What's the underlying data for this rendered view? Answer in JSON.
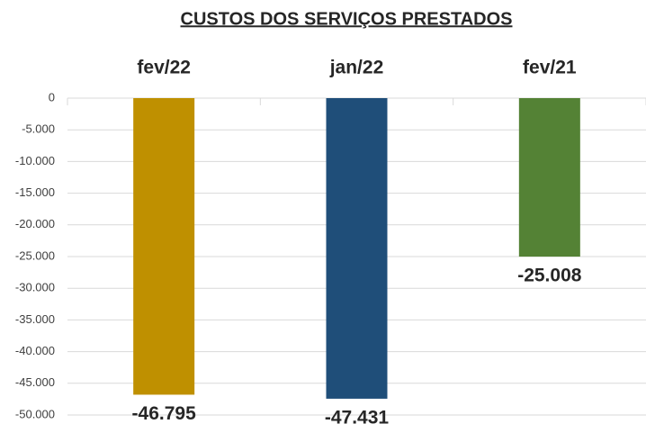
{
  "chart_data": {
    "type": "bar",
    "title": "CUSTOS DOS SERVIÇOS PRESTADOS",
    "categories": [
      "fev/22",
      "jan/22",
      "fev/21"
    ],
    "values": [
      -46795,
      -47431,
      -25008
    ],
    "value_labels": [
      "-46.795",
      "-47.431",
      "-25.008"
    ],
    "colors": [
      "#bf9000",
      "#1f4e79",
      "#548235"
    ],
    "ylim": [
      -50000,
      0
    ],
    "yticks": [
      0,
      {
        "value": -5000,
        "label": "-5.000"
      },
      {
        "value": -10000,
        "label": "-10.000"
      },
      {
        "value": -15000,
        "label": "-15.000"
      },
      {
        "value": -20000,
        "label": "-20.000"
      },
      {
        "value": -25000,
        "label": "-25.000"
      },
      {
        "value": -30000,
        "label": "-30.000"
      },
      {
        "value": -35000,
        "label": "-35.000"
      },
      {
        "value": -40000,
        "label": "-40.000"
      },
      {
        "value": -45000,
        "label": "-45.000"
      },
      {
        "value": -50000,
        "label": "-50.000"
      }
    ],
    "grid": true
  }
}
